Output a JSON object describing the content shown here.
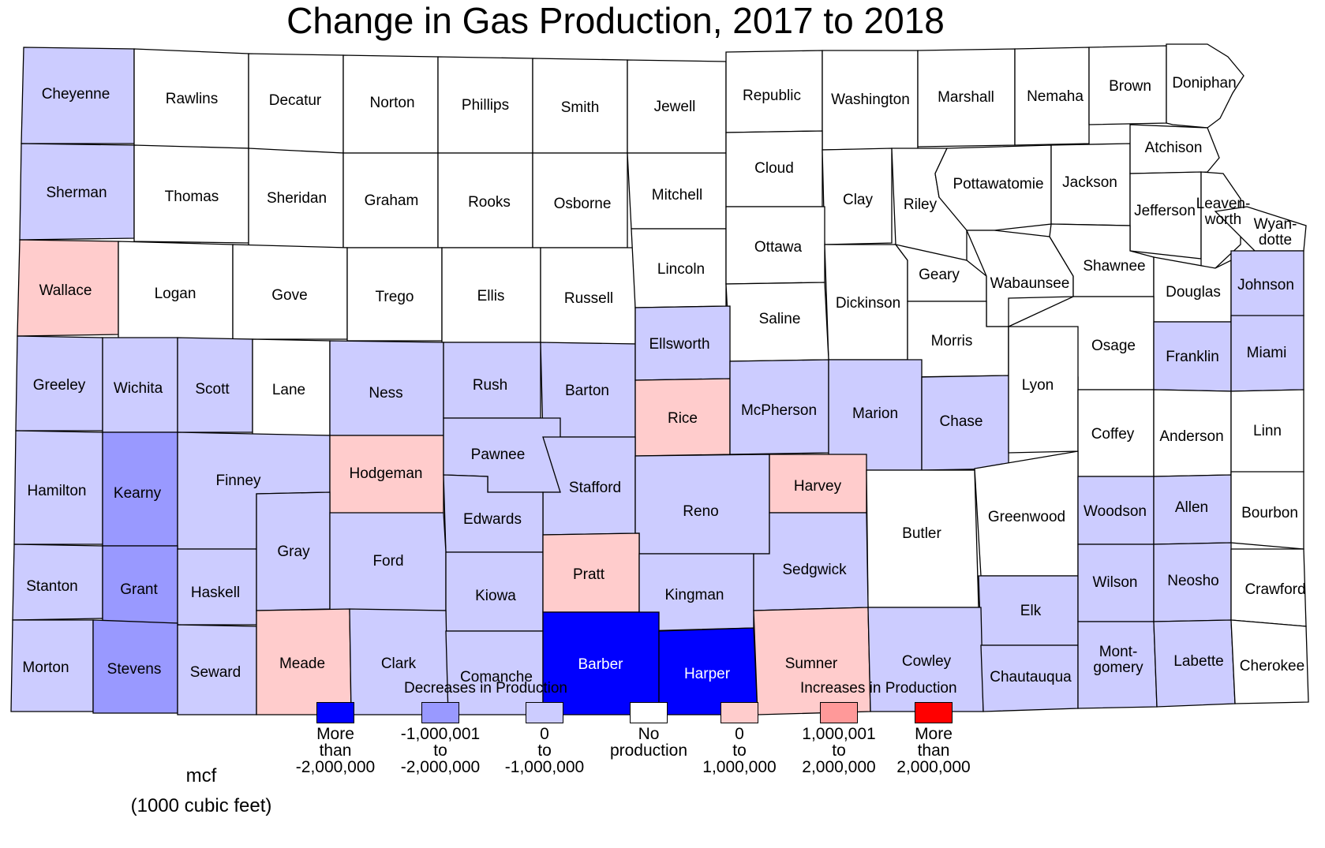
{
  "title": "Change in Gas Production, 2017 to 2018",
  "legend": {
    "decrease_heading": "Decreases in Production",
    "increase_heading": "Increases in Production",
    "unit_line1": "mcf",
    "unit_line2": "(1000 cubic feet)",
    "classes": [
      {
        "id": "dec3",
        "color": "#0000ff",
        "lines": [
          "More",
          "than",
          "-2,000,000"
        ]
      },
      {
        "id": "dec2",
        "color": "#9999ff",
        "lines": [
          "-1,000,001",
          "to",
          "-2,000,000"
        ]
      },
      {
        "id": "dec1",
        "color": "#ccccff",
        "lines": [
          "0",
          "to",
          "-1,000,000"
        ]
      },
      {
        "id": "none",
        "color": "#ffffff",
        "lines": [
          "No",
          "production"
        ]
      },
      {
        "id": "inc1",
        "color": "#ffcccc",
        "lines": [
          "0",
          "to",
          "1,000,000"
        ]
      },
      {
        "id": "inc2",
        "color": "#ff9999",
        "lines": [
          "1,000,001",
          "to",
          "2,000,000"
        ]
      },
      {
        "id": "inc3",
        "color": "#ff0000",
        "lines": [
          "More",
          "than",
          "2,000,000"
        ]
      }
    ]
  },
  "counties": [
    {
      "key": "cheyenne",
      "label": "Cheyenne",
      "class": "dec1"
    },
    {
      "key": "rawlins",
      "label": "Rawlins",
      "class": "none"
    },
    {
      "key": "decatur",
      "label": "Decatur",
      "class": "none"
    },
    {
      "key": "norton",
      "label": "Norton",
      "class": "none"
    },
    {
      "key": "phillips",
      "label": "Phillips",
      "class": "none"
    },
    {
      "key": "smith",
      "label": "Smith",
      "class": "none"
    },
    {
      "key": "jewell",
      "label": "Jewell",
      "class": "none"
    },
    {
      "key": "republic",
      "label": "Republic",
      "class": "none"
    },
    {
      "key": "washington",
      "label": "Washington",
      "class": "none"
    },
    {
      "key": "marshall",
      "label": "Marshall",
      "class": "none"
    },
    {
      "key": "nemaha",
      "label": "Nemaha",
      "class": "none"
    },
    {
      "key": "brown",
      "label": "Brown",
      "class": "none"
    },
    {
      "key": "doniphan",
      "label": "Doniphan",
      "class": "none"
    },
    {
      "key": "sherman",
      "label": "Sherman",
      "class": "dec1"
    },
    {
      "key": "thomas",
      "label": "Thomas",
      "class": "none"
    },
    {
      "key": "sheridan",
      "label": "Sheridan",
      "class": "none"
    },
    {
      "key": "graham",
      "label": "Graham",
      "class": "none"
    },
    {
      "key": "rooks",
      "label": "Rooks",
      "class": "none"
    },
    {
      "key": "osborne",
      "label": "Osborne",
      "class": "none"
    },
    {
      "key": "mitchell",
      "label": "Mitchell",
      "class": "none"
    },
    {
      "key": "cloud",
      "label": "Cloud",
      "class": "none"
    },
    {
      "key": "clay",
      "label": "Clay",
      "class": "none"
    },
    {
      "key": "riley",
      "label": "Riley",
      "class": "none"
    },
    {
      "key": "pottawatomie",
      "label": "Pottawatomie",
      "class": "none"
    },
    {
      "key": "jackson",
      "label": "Jackson",
      "class": "none"
    },
    {
      "key": "atchison",
      "label": "Atchison",
      "class": "none"
    },
    {
      "key": "jefferson",
      "label": "Jefferson",
      "class": "none"
    },
    {
      "key": "leavenworth",
      "label": [
        "Leaven-",
        "worth"
      ],
      "class": "none"
    },
    {
      "key": "wyandotte",
      "label": [
        "Wyan-",
        "dotte"
      ],
      "class": "none"
    },
    {
      "key": "wallace",
      "label": "Wallace",
      "class": "inc1"
    },
    {
      "key": "logan",
      "label": "Logan",
      "class": "none"
    },
    {
      "key": "gove",
      "label": "Gove",
      "class": "none"
    },
    {
      "key": "trego",
      "label": "Trego",
      "class": "none"
    },
    {
      "key": "ellis",
      "label": "Ellis",
      "class": "none"
    },
    {
      "key": "russell",
      "label": "Russell",
      "class": "none"
    },
    {
      "key": "lincoln",
      "label": "Lincoln",
      "class": "none"
    },
    {
      "key": "ottawa",
      "label": "Ottawa",
      "class": "none"
    },
    {
      "key": "dickinson",
      "label": "Dickinson",
      "class": "none"
    },
    {
      "key": "geary",
      "label": "Geary",
      "class": "none"
    },
    {
      "key": "wabaunsee",
      "label": "Wabaunsee",
      "class": "none"
    },
    {
      "key": "shawnee",
      "label": "Shawnee",
      "class": "none"
    },
    {
      "key": "douglas",
      "label": "Douglas",
      "class": "none"
    },
    {
      "key": "johnson",
      "label": "Johnson",
      "class": "dec1"
    },
    {
      "key": "saline",
      "label": "Saline",
      "class": "none"
    },
    {
      "key": "morris",
      "label": "Morris",
      "class": "none"
    },
    {
      "key": "osage",
      "label": "Osage",
      "class": "none"
    },
    {
      "key": "franklin",
      "label": "Franklin",
      "class": "dec1"
    },
    {
      "key": "miami",
      "label": "Miami",
      "class": "dec1"
    },
    {
      "key": "greeley",
      "label": "Greeley",
      "class": "dec1"
    },
    {
      "key": "wichita",
      "label": "Wichita",
      "class": "dec1"
    },
    {
      "key": "scott",
      "label": "Scott",
      "class": "dec1"
    },
    {
      "key": "lane",
      "label": "Lane",
      "class": "none"
    },
    {
      "key": "ness",
      "label": "Ness",
      "class": "dec1"
    },
    {
      "key": "rush",
      "label": "Rush",
      "class": "dec1"
    },
    {
      "key": "barton",
      "label": "Barton",
      "class": "dec1"
    },
    {
      "key": "ellsworth",
      "label": "Ellsworth",
      "class": "dec1"
    },
    {
      "key": "rice",
      "label": "Rice",
      "class": "inc1"
    },
    {
      "key": "mcpherson",
      "label": "McPherson",
      "class": "dec1"
    },
    {
      "key": "marion",
      "label": "Marion",
      "class": "dec1"
    },
    {
      "key": "chase",
      "label": "Chase",
      "class": "dec1"
    },
    {
      "key": "lyon",
      "label": "Lyon",
      "class": "none"
    },
    {
      "key": "coffey",
      "label": "Coffey",
      "class": "none"
    },
    {
      "key": "anderson",
      "label": "Anderson",
      "class": "none"
    },
    {
      "key": "linn",
      "label": "Linn",
      "class": "none"
    },
    {
      "key": "hamilton",
      "label": "Hamilton",
      "class": "dec1"
    },
    {
      "key": "kearny",
      "label": "Kearny",
      "class": "dec2"
    },
    {
      "key": "finney",
      "label": "Finney",
      "class": "dec1"
    },
    {
      "key": "hodgeman",
      "label": "Hodgeman",
      "class": "inc1"
    },
    {
      "key": "pawnee",
      "label": "Pawnee",
      "class": "dec1"
    },
    {
      "key": "stafford",
      "label": "Stafford",
      "class": "dec1"
    },
    {
      "key": "edwards",
      "label": "Edwards",
      "class": "dec1"
    },
    {
      "key": "reno",
      "label": "Reno",
      "class": "dec1"
    },
    {
      "key": "harvey",
      "label": "Harvey",
      "class": "inc1"
    },
    {
      "key": "butler",
      "label": "Butler",
      "class": "none"
    },
    {
      "key": "greenwood",
      "label": "Greenwood",
      "class": "none"
    },
    {
      "key": "woodson",
      "label": "Woodson",
      "class": "dec1"
    },
    {
      "key": "allen",
      "label": "Allen",
      "class": "dec1"
    },
    {
      "key": "bourbon",
      "label": "Bourbon",
      "class": "none"
    },
    {
      "key": "stanton",
      "label": "Stanton",
      "class": "dec1"
    },
    {
      "key": "grant",
      "label": "Grant",
      "class": "dec2"
    },
    {
      "key": "haskell",
      "label": "Haskell",
      "class": "dec1"
    },
    {
      "key": "gray",
      "label": "Gray",
      "class": "dec1"
    },
    {
      "key": "ford",
      "label": "Ford",
      "class": "dec1"
    },
    {
      "key": "kiowa",
      "label": "Kiowa",
      "class": "dec1"
    },
    {
      "key": "pratt",
      "label": "Pratt",
      "class": "inc1"
    },
    {
      "key": "kingman",
      "label": "Kingman",
      "class": "dec1"
    },
    {
      "key": "sedgwick",
      "label": "Sedgwick",
      "class": "dec1"
    },
    {
      "key": "elk",
      "label": "Elk",
      "class": "dec1"
    },
    {
      "key": "wilson",
      "label": "Wilson",
      "class": "dec1"
    },
    {
      "key": "neosho",
      "label": "Neosho",
      "class": "dec1"
    },
    {
      "key": "crawford",
      "label": "Crawford",
      "class": "none"
    },
    {
      "key": "morton",
      "label": "Morton",
      "class": "dec1"
    },
    {
      "key": "stevens",
      "label": "Stevens",
      "class": "dec2"
    },
    {
      "key": "seward",
      "label": "Seward",
      "class": "dec1"
    },
    {
      "key": "meade",
      "label": "Meade",
      "class": "inc1"
    },
    {
      "key": "clark",
      "label": "Clark",
      "class": "dec1"
    },
    {
      "key": "comanche",
      "label": "Comanche",
      "class": "dec1"
    },
    {
      "key": "barber",
      "label": "Barber",
      "class": "dec3"
    },
    {
      "key": "harper",
      "label": "Harper",
      "class": "dec3"
    },
    {
      "key": "sumner",
      "label": "Sumner",
      "class": "inc1"
    },
    {
      "key": "cowley",
      "label": "Cowley",
      "class": "dec1"
    },
    {
      "key": "chautauqua",
      "label": "Chautauqua",
      "class": "dec1"
    },
    {
      "key": "montgomery",
      "label": [
        "Mont-",
        "gomery"
      ],
      "class": "dec1"
    },
    {
      "key": "labette",
      "label": "Labette",
      "class": "dec1"
    },
    {
      "key": "cherokee",
      "label": "Cherokee",
      "class": "none"
    }
  ]
}
